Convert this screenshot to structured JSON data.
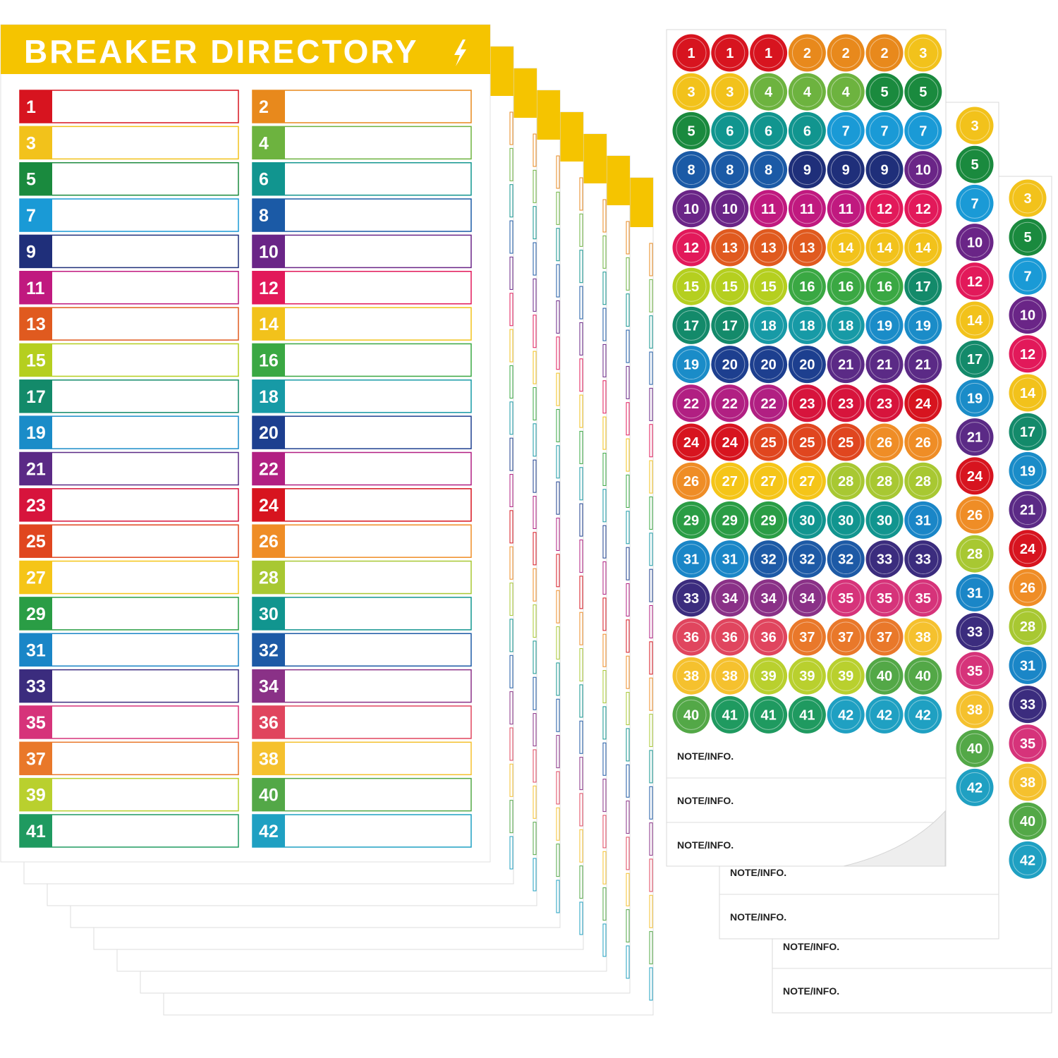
{
  "directory": {
    "title": "BREAKER DIRECTORY",
    "numbers": [
      1,
      2,
      3,
      4,
      5,
      6,
      7,
      8,
      9,
      10,
      11,
      12,
      13,
      14,
      15,
      16,
      17,
      18,
      19,
      20,
      21,
      22,
      23,
      24,
      25,
      26,
      27,
      28,
      29,
      30,
      31,
      32,
      33,
      34,
      35,
      36,
      37,
      38,
      39,
      40,
      41,
      42
    ],
    "colors": [
      "#d7141f",
      "#e8891c",
      "#f2c21b",
      "#6db33f",
      "#1a8a3e",
      "#11958f",
      "#1a9ad6",
      "#1b5aa6",
      "#1f2f7a",
      "#6a2587",
      "#c0197f",
      "#e2195a",
      "#e05a1f",
      "#f2c21b",
      "#b5cf1f",
      "#3aa843",
      "#138a6a",
      "#179aa6",
      "#1a8cc8",
      "#1d3f8f",
      "#5b2a86",
      "#b11f82",
      "#d7143c",
      "#d7141f",
      "#e0461f",
      "#ef8d26",
      "#f5c518",
      "#a8c832",
      "#2a9d45",
      "#11958f",
      "#1a86c7",
      "#1d5aa6",
      "#3b2c7e",
      "#8a3187",
      "#d6337a",
      "#e0455e",
      "#e9782a",
      "#f5c12e",
      "#b9d02e",
      "#53a847",
      "#1f9a60",
      "#1fa0c2"
    ]
  },
  "sticker_sheets": [
    {
      "rows": [
        [
          1,
          1,
          1,
          2,
          2,
          2,
          3
        ],
        [
          3,
          3,
          4,
          4,
          4,
          5,
          5
        ],
        [
          5,
          6,
          6,
          6,
          7,
          7,
          7
        ],
        [
          8,
          8,
          8,
          9,
          9,
          9,
          10
        ],
        [
          10,
          10,
          11,
          11,
          11,
          12,
          12
        ],
        [
          12,
          13,
          13,
          13,
          14,
          14,
          14
        ],
        [
          15,
          15,
          15,
          16,
          16,
          16,
          17
        ],
        [
          17,
          17,
          18,
          18,
          18,
          19,
          19
        ],
        [
          19,
          20,
          20,
          20,
          21,
          21,
          21
        ],
        [
          22,
          22,
          22,
          23,
          23,
          23,
          24
        ],
        [
          24,
          24,
          25,
          25,
          25,
          26,
          26
        ],
        [
          26,
          27,
          27,
          27,
          28,
          28,
          28
        ],
        [
          29,
          29,
          29,
          30,
          30,
          30,
          31
        ],
        [
          31,
          31,
          32,
          32,
          32,
          33,
          33
        ],
        [
          33,
          34,
          34,
          34,
          35,
          35,
          35
        ],
        [
          36,
          36,
          36,
          37,
          37,
          37,
          38
        ],
        [
          38,
          38,
          39,
          39,
          39,
          40,
          40
        ],
        [
          40,
          41,
          41,
          41,
          42,
          42,
          42
        ]
      ],
      "notes": [
        "NOTE/INFO.",
        "NOTE/INFO.",
        "NOTE/INFO."
      ]
    },
    {
      "rows": [
        [
          3
        ],
        [
          5
        ],
        [
          7
        ],
        [
          10
        ],
        [
          12
        ],
        [
          14
        ],
        [
          17
        ],
        [
          19
        ],
        [
          21
        ],
        [
          24
        ],
        [
          26
        ],
        [
          28
        ],
        [
          31
        ],
        [
          33
        ],
        [
          35
        ],
        [
          38
        ],
        [
          40
        ],
        [
          42
        ]
      ],
      "notes": [
        "NOTE/INFO.",
        "NOTE/INFO."
      ]
    },
    {
      "rows": [
        [
          3
        ],
        [
          5
        ],
        [
          7
        ],
        [
          10
        ],
        [
          12
        ],
        [
          14
        ],
        [
          17
        ],
        [
          19
        ],
        [
          21
        ],
        [
          24
        ],
        [
          26
        ],
        [
          28
        ],
        [
          31
        ],
        [
          33
        ],
        [
          35
        ],
        [
          38
        ],
        [
          40
        ],
        [
          42
        ]
      ],
      "notes": [
        "NOTE/INFO.",
        "NOTE/INFO."
      ]
    }
  ]
}
